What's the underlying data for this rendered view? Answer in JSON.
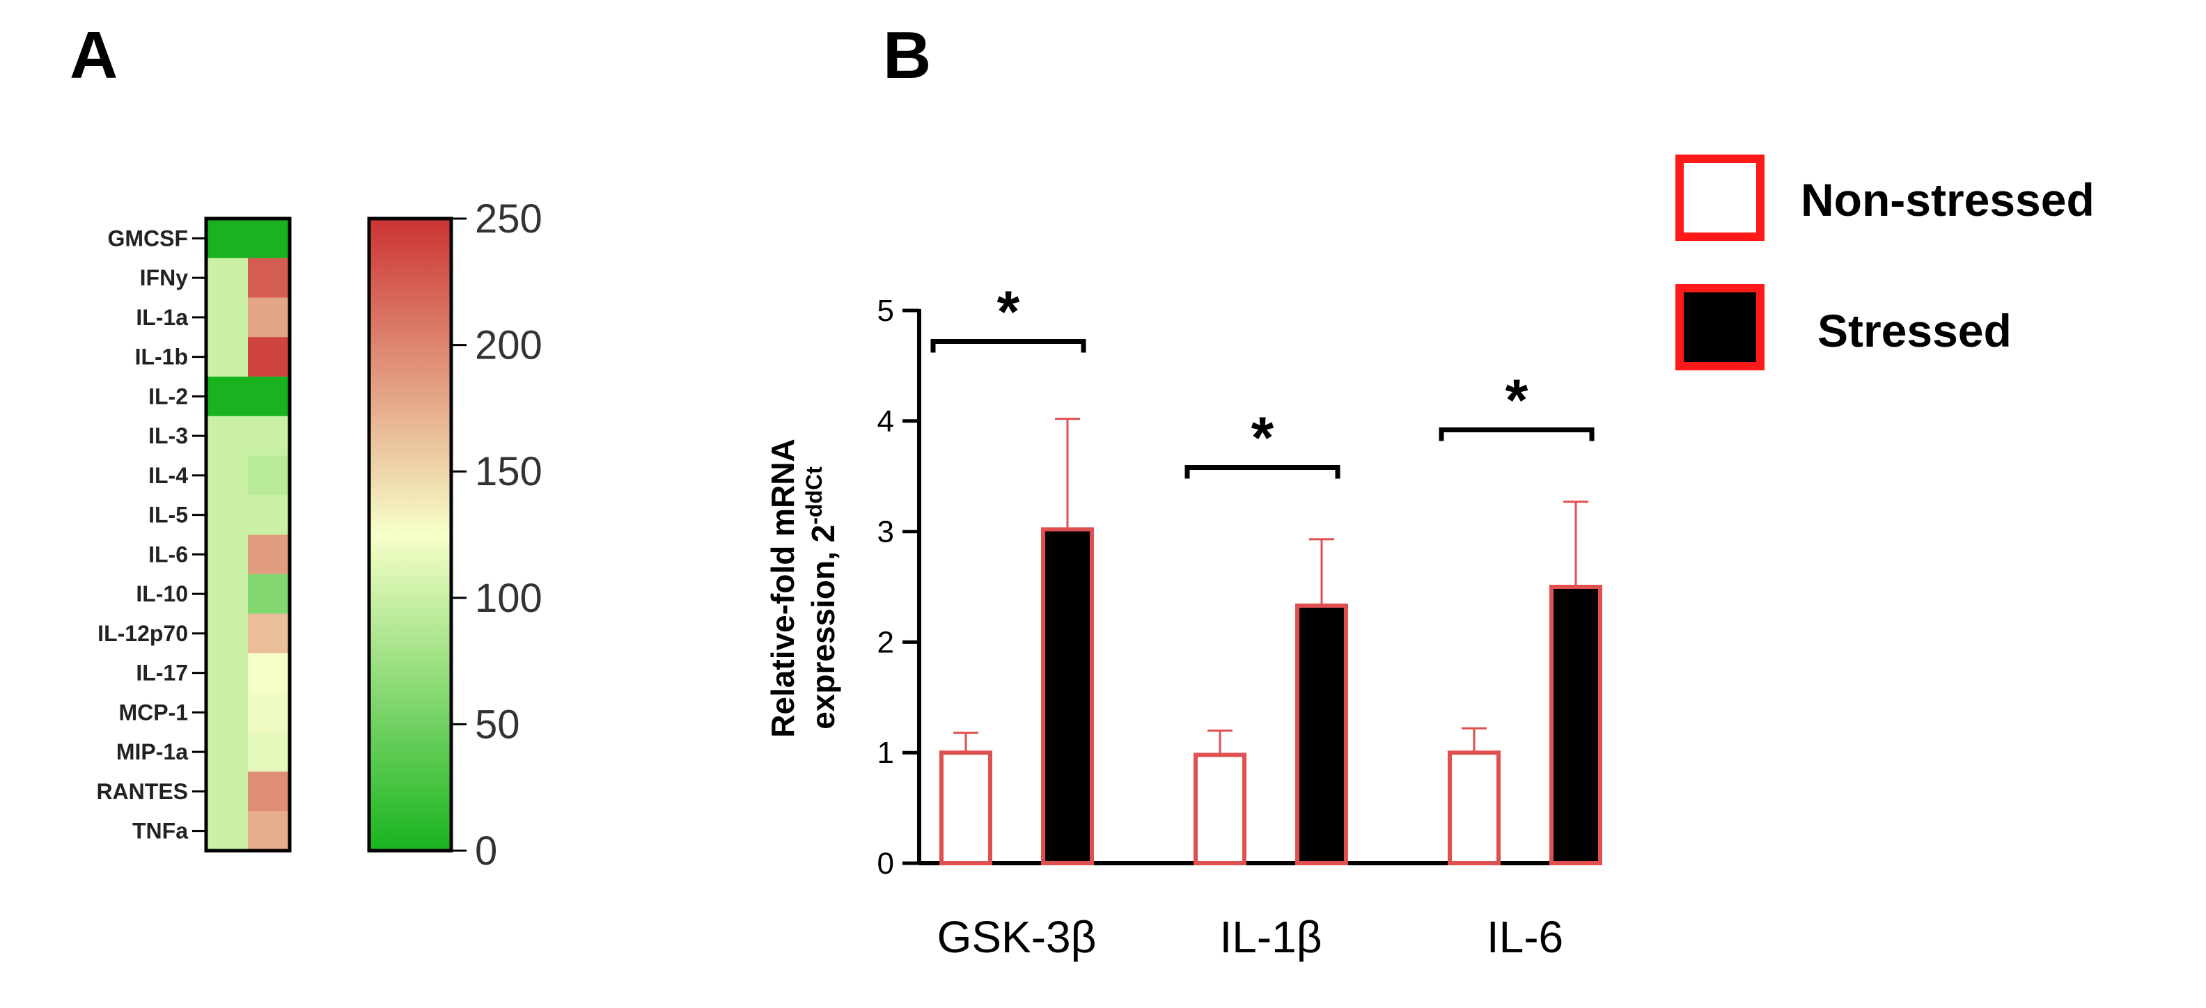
{
  "panels": {
    "a_label": "A",
    "b_label": "B"
  },
  "colors": {
    "low": "#18b31e",
    "mid": "#f7ffc8",
    "high": "#cc3333",
    "bar_nonstressed_fill": "#ffffff",
    "bar_stressed_fill": "#000000",
    "bar_edge": "#e05050",
    "legend_edge": "#ff1a1a"
  },
  "chart_data": [
    {
      "type": "heatmap",
      "title": "",
      "rows": [
        "GMCSF",
        "IFNy",
        "IL-1a",
        "IL-1b",
        "IL-2",
        "IL-3",
        "IL-4",
        "IL-5",
        "IL-6",
        "IL-10",
        "IL-12p70",
        "IL-17",
        "MCP-1",
        "MIP-1a",
        "RANTES",
        "TNFa"
      ],
      "columns": [
        "Non-stressed",
        "Stressed"
      ],
      "values": [
        [
          0,
          0
        ],
        [
          100,
          225
        ],
        [
          100,
          180
        ],
        [
          100,
          240
        ],
        [
          0,
          0
        ],
        [
          100,
          100
        ],
        [
          100,
          90
        ],
        [
          100,
          100
        ],
        [
          100,
          185
        ],
        [
          100,
          60
        ],
        [
          100,
          165
        ],
        [
          100,
          125
        ],
        [
          100,
          120
        ],
        [
          100,
          115
        ],
        [
          100,
          195
        ],
        [
          100,
          175
        ]
      ],
      "colorbar": {
        "min": 0,
        "max": 250,
        "ticks": [
          0,
          50,
          100,
          150,
          200,
          250
        ],
        "tick_labels": [
          "0",
          "50",
          "100",
          "150",
          "200",
          "250"
        ]
      }
    },
    {
      "type": "bar",
      "title": "",
      "categories": [
        "GSK-3β",
        "IL-1β",
        "IL-6"
      ],
      "series": [
        {
          "name": "Non-stressed",
          "values": [
            1.0,
            0.98,
            1.0
          ],
          "errors": [
            0.18,
            0.22,
            0.22
          ]
        },
        {
          "name": "Stressed",
          "values": [
            3.02,
            2.33,
            2.5
          ],
          "errors": [
            1.0,
            0.6,
            0.77
          ]
        }
      ],
      "ylabel_line1": "Relative-fold mRNA",
      "ylabel_line2": "expression, 2",
      "ylabel_superscript": "-ddCt",
      "ylim": [
        0,
        5
      ],
      "yticks": [
        0,
        1,
        2,
        3,
        4,
        5
      ],
      "ytick_labels": [
        "0",
        "1",
        "2",
        "3",
        "4",
        "5"
      ],
      "significance": [
        {
          "category": "GSK-3β",
          "label": "*",
          "level": 4.72
        },
        {
          "category": "IL-1β",
          "label": "*",
          "level": 3.58
        },
        {
          "category": "IL-6",
          "label": "*",
          "level": 3.92
        }
      ],
      "legend": [
        {
          "label": "Non-stressed",
          "swatch": "open"
        },
        {
          "label": "Stressed",
          "swatch": "filled"
        }
      ]
    }
  ]
}
